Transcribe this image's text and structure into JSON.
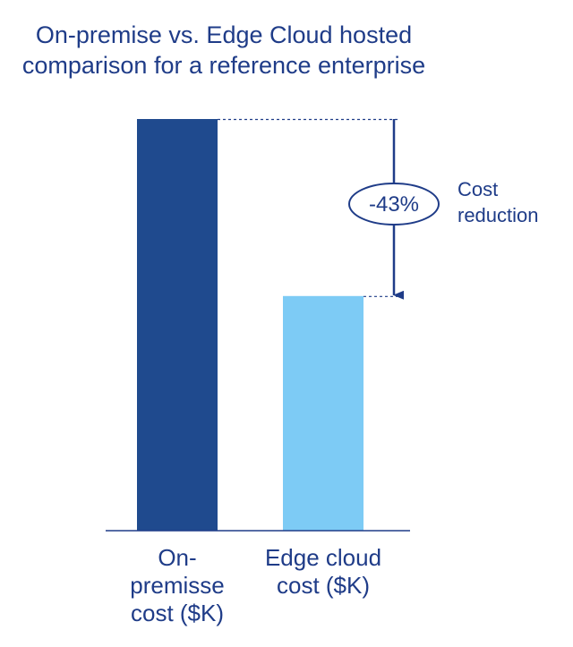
{
  "chart_data": {
    "type": "bar",
    "title_lines": [
      "On-premise vs. Edge Cloud hosted",
      "comparison for a reference enterprise"
    ],
    "categories": [
      [
        "On-",
        "premisse",
        "cost ($K)"
      ],
      [
        "Edge cloud",
        "cost ($K)"
      ]
    ],
    "values": [
      100,
      57
    ],
    "colors": [
      "#1f4a8e",
      "#7dcbf5"
    ],
    "ylim": [
      0,
      100
    ],
    "axis_visible": false,
    "grid": false,
    "annotation": {
      "percent_label": "-43%",
      "text_lines": [
        "Cost",
        "reduction"
      ],
      "color": "#1f3c88"
    }
  }
}
